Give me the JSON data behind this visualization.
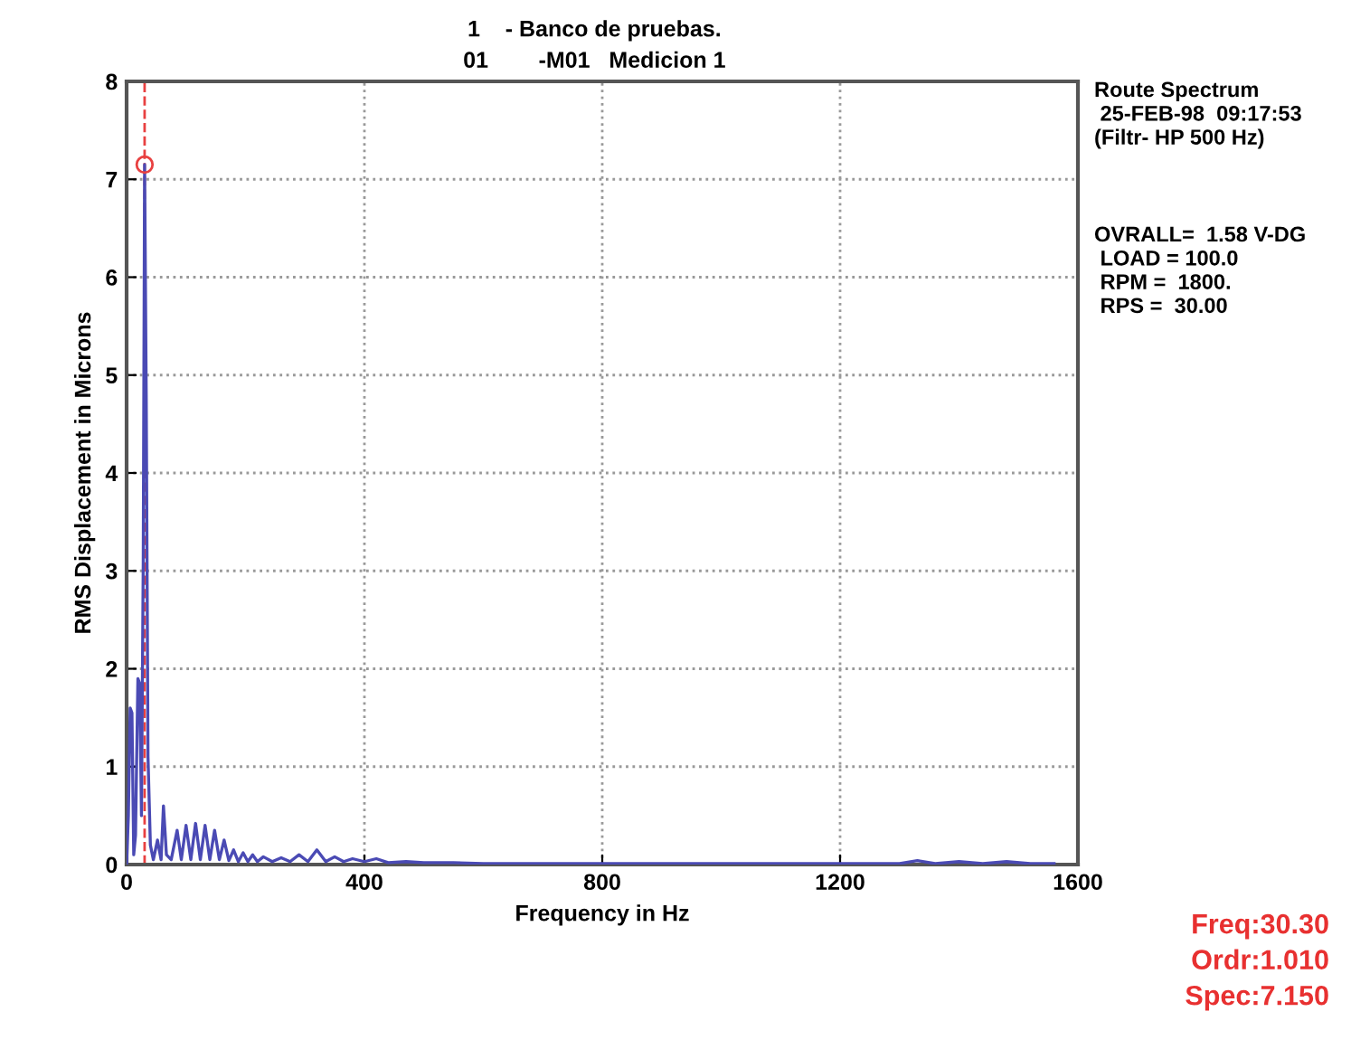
{
  "chart_data": {
    "type": "line",
    "title": "1    - Banco de pruebas.",
    "subtitle": "01        -M01   Medicion 1",
    "xlabel": "Frequency in Hz",
    "ylabel": "RMS Displacement in Microns",
    "series": [
      {
        "color": "#4a4ab4",
        "x": [
          0,
          3,
          6,
          9,
          12,
          15,
          19,
          22,
          25,
          28,
          30.3,
          33,
          36,
          40,
          45,
          52,
          58,
          62,
          67,
          75,
          85,
          92,
          100,
          108,
          116,
          124,
          132,
          140,
          148,
          156,
          164,
          172,
          180,
          188,
          196,
          204,
          212,
          220,
          230,
          245,
          260,
          275,
          290,
          305,
          320,
          335,
          350,
          365,
          380,
          400,
          420,
          440,
          470,
          500,
          550,
          600,
          700,
          800,
          900,
          1000,
          1100,
          1200,
          1300,
          1330,
          1360,
          1400,
          1440,
          1480,
          1520,
          1560
        ],
        "values": [
          0,
          0.5,
          1.6,
          1.55,
          0.1,
          0.3,
          1.9,
          1.85,
          0.5,
          3.1,
          7.15,
          4.8,
          1.1,
          0.2,
          0.05,
          0.25,
          0.05,
          0.6,
          0.1,
          0.05,
          0.35,
          0.05,
          0.4,
          0.05,
          0.42,
          0.05,
          0.4,
          0.05,
          0.35,
          0.05,
          0.25,
          0.04,
          0.15,
          0.03,
          0.12,
          0.03,
          0.1,
          0.03,
          0.08,
          0.03,
          0.07,
          0.03,
          0.1,
          0.03,
          0.15,
          0.03,
          0.08,
          0.03,
          0.06,
          0.03,
          0.06,
          0.02,
          0.03,
          0.02,
          0.02,
          0.01,
          0.01,
          0.01,
          0.01,
          0.01,
          0.01,
          0.01,
          0.01,
          0.04,
          0.01,
          0.03,
          0.01,
          0.03,
          0.01,
          0.01
        ]
      },
      {
        "type": "scatter",
        "color": "#e84040",
        "marker": "circle",
        "x": [
          30.3
        ],
        "values": [
          7.15
        ]
      }
    ],
    "xlim": [
      0,
      1600
    ],
    "xticks": [
      0,
      400,
      800,
      1200,
      1600
    ],
    "ylim": [
      0,
      8
    ],
    "yticks": [
      0,
      1,
      2,
      3,
      4,
      5,
      6,
      7,
      8
    ],
    "grid": true,
    "ref_lines": [
      {
        "axis": "x",
        "value": 30.3,
        "color": "#e84040",
        "line_style": "dashed"
      }
    ],
    "annotations": [
      "Route Spectrum\n 25-FEB-98  09:17:53\n(Filtr- HP 500 Hz)",
      "OVRALL=  1.58 V-DG\n LOAD = 100.0\n RPM =  1800.\n RPS =  30.00",
      "Freq:30.30\nOrdr:1.010\nSpec:7.150"
    ]
  }
}
